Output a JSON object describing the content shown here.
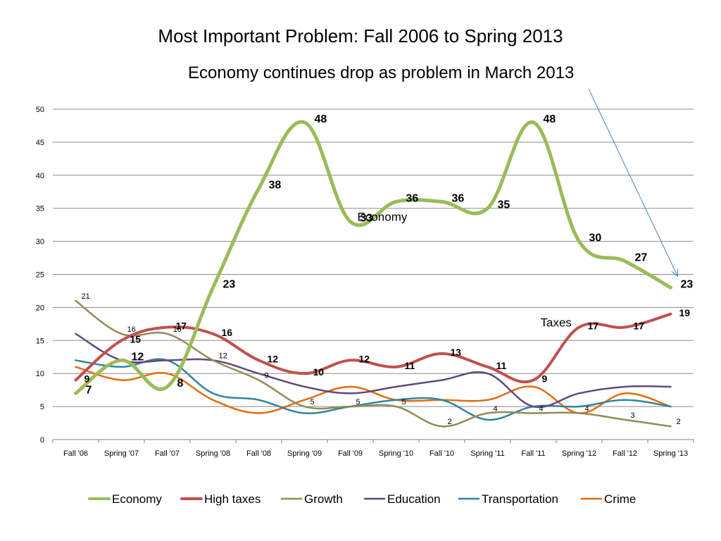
{
  "chart_data": {
    "type": "line",
    "title": "Most Important Problem: Fall 2006 to Spring 2013",
    "subtitle": "Economy continues drop as problem in March 2013",
    "xlabel": "",
    "ylabel": "",
    "ylim": [
      0,
      50
    ],
    "yticks": [
      0,
      5,
      10,
      15,
      20,
      25,
      30,
      35,
      40,
      45,
      50
    ],
    "grid": true,
    "legend_position": "bottom",
    "categories": [
      "Fall '06",
      "Spring '07",
      "Fall '07",
      "Spring '08",
      "Fall '08",
      "Spring '09",
      "Fall '09",
      "Spring '10",
      "Fall '10",
      "Spring '11",
      "Fall '11",
      "Spring '12",
      "Fall '12",
      "Spring '13"
    ],
    "series": [
      {
        "name": "Economy",
        "color": "#9BBB59",
        "width": 5,
        "label_style": "bold-large",
        "values": [
          7,
          12,
          8,
          23,
          38,
          48,
          33,
          36,
          36,
          35,
          48,
          30,
          27,
          23
        ],
        "labels": [
          "7",
          "12",
          "8",
          "23",
          "38",
          "48",
          "33",
          "36",
          "36",
          "35",
          "48",
          "30",
          "27",
          "23"
        ]
      },
      {
        "name": "High taxes",
        "color": "#C0504D",
        "width": 4,
        "label_style": "bold",
        "values": [
          9,
          15,
          17,
          16,
          12,
          10,
          12,
          11,
          13,
          11,
          9,
          17,
          17,
          19
        ],
        "labels": [
          "9",
          "15",
          "17",
          "16",
          "12",
          "10",
          "12",
          "11",
          "13",
          "11",
          "9",
          "17",
          "17",
          "19"
        ]
      },
      {
        "name": "Growth",
        "color": "#948A54",
        "width": 2.5,
        "label_style": "plain",
        "values": [
          21,
          16,
          16,
          12,
          9,
          5,
          5,
          5,
          2,
          4,
          4,
          4,
          3,
          2
        ],
        "labels": [
          "21",
          "16",
          "16",
          "12",
          "9",
          "5",
          "5",
          "5",
          "2",
          "4",
          "4",
          "4",
          "3",
          "2"
        ]
      },
      {
        "name": "Education",
        "color": "#604A7B",
        "width": 2.5,
        "label_style": "none",
        "values": [
          16,
          12,
          12,
          12,
          10,
          8,
          7,
          8,
          9,
          10,
          5,
          7,
          8,
          8
        ]
      },
      {
        "name": "Transportation",
        "color": "#31859C",
        "width": 2.5,
        "label_style": "none",
        "values": [
          12,
          11,
          12,
          7,
          6,
          4,
          5,
          6,
          6,
          3,
          5,
          5,
          6,
          5
        ]
      },
      {
        "name": "Crime",
        "color": "#E46C0A",
        "width": 2.5,
        "label_style": "none",
        "values": [
          11,
          9,
          10,
          6,
          4,
          6,
          8,
          6,
          6,
          6,
          8,
          4,
          7,
          5
        ]
      }
    ],
    "annotations": [
      {
        "text": "Economy",
        "category": "Fall '09",
        "value": 33
      },
      {
        "text": "Taxes",
        "category": "Fall '11",
        "value": 17
      }
    ],
    "arrow": {
      "points_to_category": "Spring '13",
      "points_to_value": 23,
      "color": "#4F81BD"
    }
  }
}
